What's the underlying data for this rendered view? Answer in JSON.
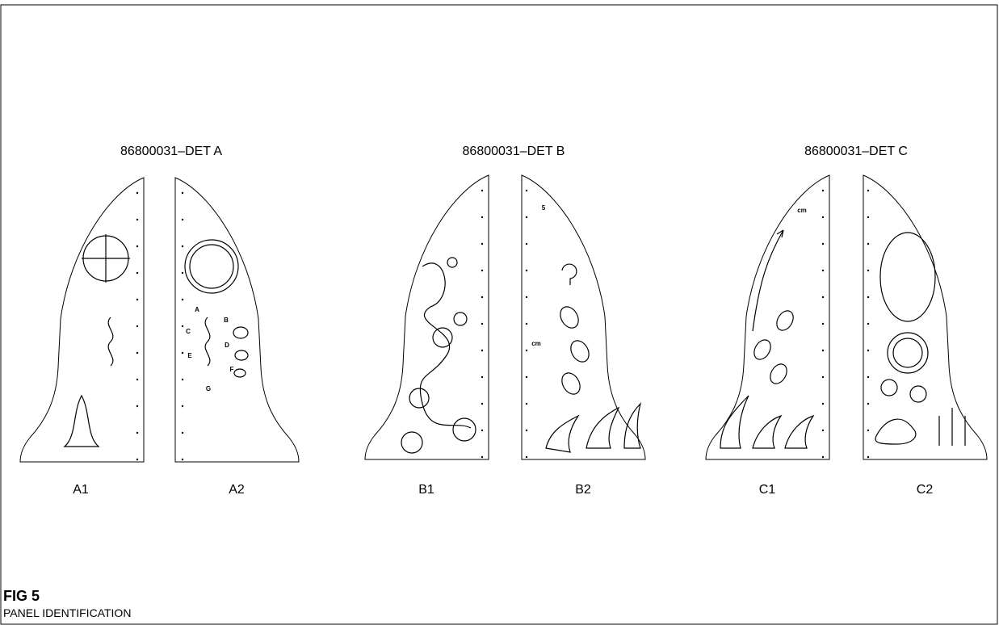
{
  "groups": [
    {
      "title": "86800031–DET A",
      "panels": [
        {
          "label": "A1"
        },
        {
          "label": "A2",
          "annotations": [
            "A",
            "B",
            "C",
            "D",
            "E",
            "F",
            "G"
          ]
        }
      ]
    },
    {
      "title": "86800031–DET B",
      "panels": [
        {
          "label": "B1"
        },
        {
          "label": "B2",
          "annotations": [
            "5",
            "cm"
          ]
        }
      ]
    },
    {
      "title": "86800031–DET C",
      "panels": [
        {
          "label": "C1",
          "annotations": [
            "cm"
          ]
        },
        {
          "label": "C2"
        }
      ]
    }
  ],
  "figure": {
    "number": "FIG 5",
    "caption": "PANEL IDENTIFICATION"
  }
}
